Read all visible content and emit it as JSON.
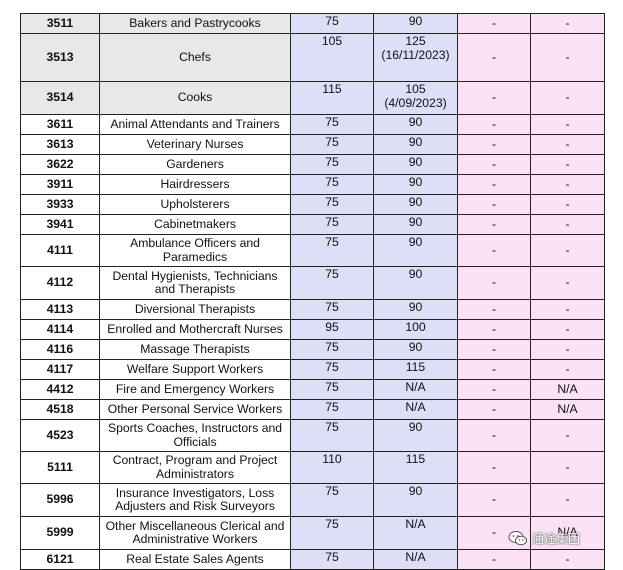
{
  "rows": [
    {
      "code": "3511",
      "occupation": "Bakers and Pastrycooks",
      "v1": "75",
      "v2": "90",
      "v3": "-",
      "v4": "-"
    },
    {
      "code": "3513",
      "occupation": "Chefs",
      "v1": "105",
      "v2": "125\n(16/11/2023)",
      "v3": "-",
      "v4": "-"
    },
    {
      "code": "3514",
      "occupation": "Cooks",
      "v1": "115",
      "v2": "105\n(4/09/2023)",
      "v3": "-",
      "v4": "-"
    },
    {
      "code": "3611",
      "occupation": "Animal Attendants and Trainers",
      "v1": "75",
      "v2": "90",
      "v3": "-",
      "v4": "-"
    },
    {
      "code": "3613",
      "occupation": "Veterinary Nurses",
      "v1": "75",
      "v2": "90",
      "v3": "-",
      "v4": "-"
    },
    {
      "code": "3622",
      "occupation": "Gardeners",
      "v1": "75",
      "v2": "90",
      "v3": "-",
      "v4": "-"
    },
    {
      "code": "3911",
      "occupation": "Hairdressers",
      "v1": "75",
      "v2": "90",
      "v3": "-",
      "v4": "-"
    },
    {
      "code": "3933",
      "occupation": "Upholsterers",
      "v1": "75",
      "v2": "90",
      "v3": "-",
      "v4": "-"
    },
    {
      "code": "3941",
      "occupation": "Cabinetmakers",
      "v1": "75",
      "v2": "90",
      "v3": "-",
      "v4": "-"
    },
    {
      "code": "4111",
      "occupation": "Ambulance Officers and Paramedics",
      "v1": "75",
      "v2": "90",
      "v3": "-",
      "v4": "-"
    },
    {
      "code": "4112",
      "occupation": "Dental Hygienists, Technicians and Therapists",
      "v1": "75",
      "v2": "90",
      "v3": "-",
      "v4": "-"
    },
    {
      "code": "4113",
      "occupation": "Diversional Therapists",
      "v1": "75",
      "v2": "90",
      "v3": "-",
      "v4": "-"
    },
    {
      "code": "4114",
      "occupation": "Enrolled and Mothercraft Nurses",
      "v1": "95",
      "v2": "100",
      "v3": "-",
      "v4": "-"
    },
    {
      "code": "4116",
      "occupation": "Massage Therapists",
      "v1": "75",
      "v2": "90",
      "v3": "-",
      "v4": "-"
    },
    {
      "code": "4117",
      "occupation": "Welfare Support Workers",
      "v1": "75",
      "v2": "115",
      "v3": "-",
      "v4": "-"
    },
    {
      "code": "4412",
      "occupation": "Fire and Emergency Workers",
      "v1": "75",
      "v2": "N/A",
      "v3": "-",
      "v4": "N/A"
    },
    {
      "code": "4518",
      "occupation": "Other Personal Service Workers",
      "v1": "75",
      "v2": "N/A",
      "v3": "-",
      "v4": "N/A"
    },
    {
      "code": "4523",
      "occupation": "Sports Coaches, Instructors and Officials",
      "v1": "75",
      "v2": "90",
      "v3": "-",
      "v4": "-"
    },
    {
      "code": "5111",
      "occupation": "Contract, Program and Project Administrators",
      "v1": "110",
      "v2": "115",
      "v3": "-",
      "v4": "-"
    },
    {
      "code": "5996",
      "occupation": "Insurance Investigators, Loss Adjusters and Risk Surveyors",
      "v1": "75",
      "v2": "90",
      "v3": "-",
      "v4": "-"
    },
    {
      "code": "5999",
      "occupation": "Other Miscellaneous Clerical and Administrative Workers",
      "v1": "75",
      "v2": "N/A",
      "v3": "-",
      "v4": "N/A"
    },
    {
      "code": "6121",
      "occupation": "Real Estate Sales Agents",
      "v1": "75",
      "v2": "N/A",
      "v3": "-",
      "v4": "-"
    }
  ],
  "watermark": {
    "text": "通途集团",
    "icon": "wechat-icon"
  }
}
